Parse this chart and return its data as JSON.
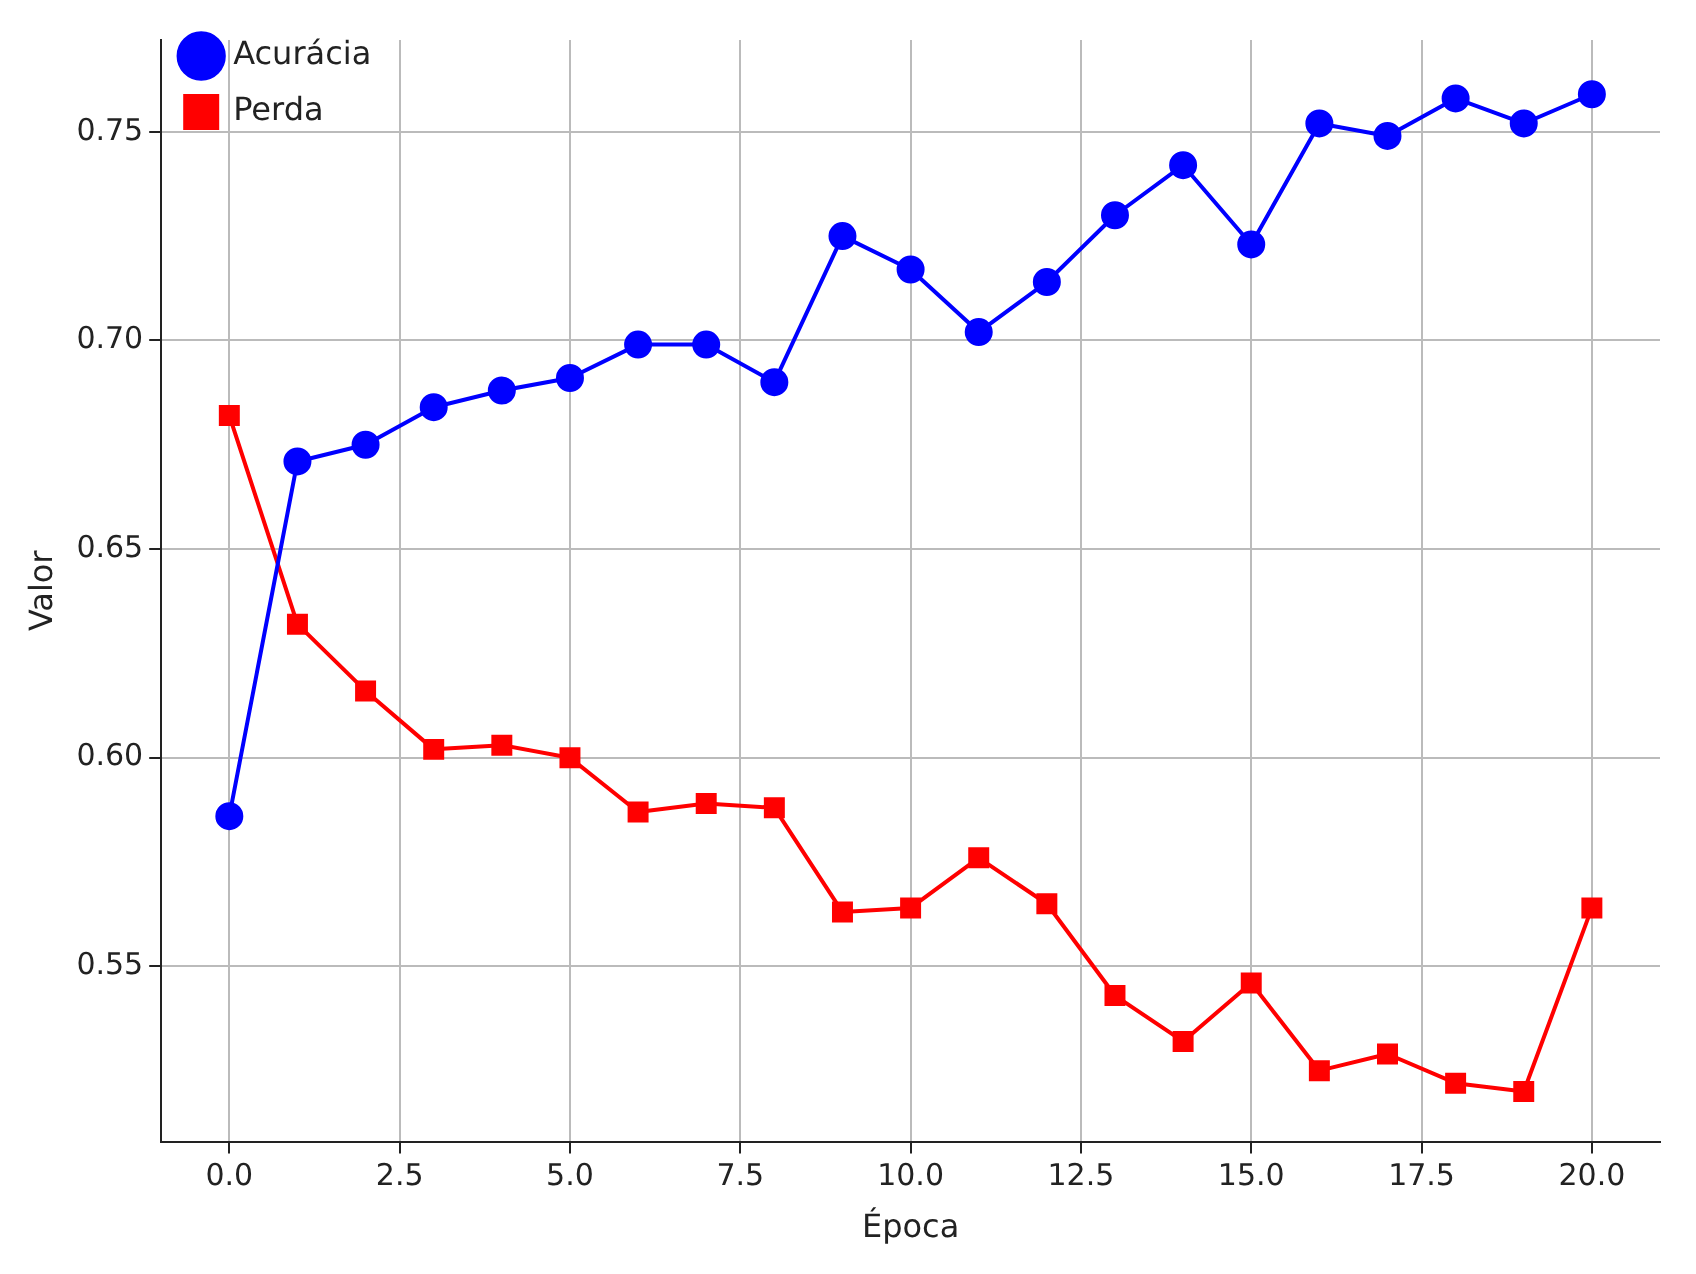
{
  "chart_data": {
    "type": "line",
    "xlabel": "Época",
    "ylabel": "Valor",
    "x": [
      0,
      1,
      2,
      3,
      4,
      5,
      6,
      7,
      8,
      9,
      10,
      11,
      12,
      13,
      14,
      15,
      16,
      17,
      18,
      19,
      20
    ],
    "series": [
      {
        "name": "Acurácia",
        "color": "#0000ff",
        "marker": "circle",
        "values": [
          0.586,
          0.671,
          0.675,
          0.684,
          0.688,
          0.691,
          0.699,
          0.699,
          0.69,
          0.725,
          0.717,
          0.702,
          0.714,
          0.73,
          0.742,
          0.723,
          0.752,
          0.749,
          0.758,
          0.752,
          0.759
        ]
      },
      {
        "name": "Perda",
        "color": "#ff0000",
        "marker": "square",
        "values": [
          0.682,
          0.632,
          0.616,
          0.602,
          0.603,
          0.6,
          0.587,
          0.589,
          0.588,
          0.563,
          0.564,
          0.576,
          0.565,
          0.543,
          0.532,
          0.546,
          0.525,
          0.529,
          0.522,
          0.52,
          0.564
        ]
      }
    ],
    "xlim": [
      -1,
      21
    ],
    "xticks": [
      {
        "value": 0,
        "label": "0.0"
      },
      {
        "value": 2.5,
        "label": "2.5"
      },
      {
        "value": 5,
        "label": "5.0"
      },
      {
        "value": 7.5,
        "label": "7.5"
      },
      {
        "value": 10,
        "label": "10.0"
      },
      {
        "value": 12.5,
        "label": "12.5"
      },
      {
        "value": 15,
        "label": "15.0"
      },
      {
        "value": 17.5,
        "label": "17.5"
      },
      {
        "value": 20,
        "label": "20.0"
      }
    ],
    "ylim": [
      0.508,
      0.772
    ],
    "yticks": [
      0.55,
      {
        "value": 0.6,
        "label": "0.60"
      },
      {
        "value": 0.65,
        "label": "0.65"
      },
      {
        "value": 0.7,
        "label": "0.70"
      },
      0.75
    ],
    "grid": true,
    "legend": "top left",
    "line_style": "solid"
  }
}
